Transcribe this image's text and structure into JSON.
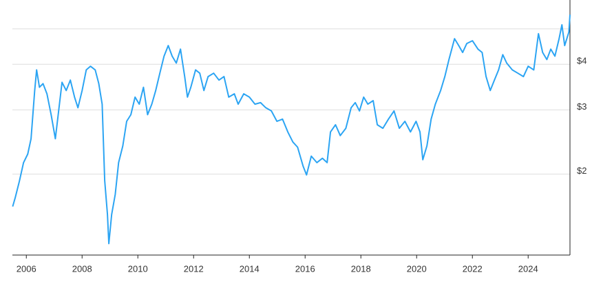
{
  "chart_data": {
    "type": "line",
    "color": "#2ba4f3",
    "yscale": "log",
    "grid": true,
    "xlim": [
      2005.5,
      2025.5
    ],
    "xticks": [
      2006,
      2008,
      2010,
      2012,
      2014,
      2016,
      2018,
      2020,
      2022,
      2024
    ],
    "ylim": [
      1.2,
      6
    ],
    "yticks": [
      {
        "value": 2,
        "label": "$2"
      },
      {
        "value": 3,
        "label": "$3"
      },
      {
        "value": 4,
        "label": "$4"
      },
      {
        "value": 5,
        "label": null
      }
    ],
    "x": [
      2005.51,
      2005.6,
      2005.75,
      2005.9,
      2006.05,
      2006.17,
      2006.3,
      2006.37,
      2006.47,
      2006.6,
      2006.74,
      2006.89,
      2007.04,
      2007.16,
      2007.28,
      2007.43,
      2007.58,
      2007.73,
      2007.85,
      2008.0,
      2008.15,
      2008.3,
      2008.47,
      2008.6,
      2008.72,
      2008.81,
      2008.91,
      2008.96,
      2009.06,
      2009.19,
      2009.31,
      2009.46,
      2009.6,
      2009.75,
      2009.9,
      2010.05,
      2010.2,
      2010.35,
      2010.5,
      2010.64,
      2010.79,
      2010.94,
      2011.09,
      2011.23,
      2011.38,
      2011.53,
      2011.68,
      2011.78,
      2011.9,
      2012.07,
      2012.22,
      2012.37,
      2012.52,
      2012.72,
      2012.91,
      2013.09,
      2013.26,
      2013.46,
      2013.6,
      2013.8,
      2014.0,
      2014.2,
      2014.4,
      2014.59,
      2014.79,
      2014.99,
      2015.19,
      2015.38,
      2015.56,
      2015.73,
      2015.93,
      2016.05,
      2016.22,
      2016.42,
      2016.62,
      2016.79,
      2016.91,
      2017.09,
      2017.26,
      2017.46,
      2017.65,
      2017.8,
      2017.95,
      2018.1,
      2018.25,
      2018.44,
      2018.59,
      2018.79,
      2018.99,
      2019.19,
      2019.38,
      2019.58,
      2019.78,
      2019.98,
      2020.12,
      2020.22,
      2020.37,
      2020.52,
      2020.67,
      2020.86,
      2021.01,
      2021.16,
      2021.36,
      2021.51,
      2021.65,
      2021.8,
      2022.0,
      2022.2,
      2022.35,
      2022.49,
      2022.64,
      2022.79,
      2022.94,
      2023.09,
      2023.23,
      2023.43,
      2023.63,
      2023.83,
      2024.0,
      2024.2,
      2024.37,
      2024.52,
      2024.67,
      2024.81,
      2024.96,
      2025.11,
      2025.21,
      2025.31,
      2025.46,
      2025.5
    ],
    "series": [
      {
        "name": null,
        "color": "#2ba4f3",
        "values": [
          1.63,
          1.72,
          1.91,
          2.15,
          2.27,
          2.5,
          3.39,
          3.86,
          3.46,
          3.54,
          3.32,
          2.91,
          2.5,
          2.98,
          3.57,
          3.39,
          3.62,
          3.25,
          3.04,
          3.39,
          3.86,
          3.95,
          3.86,
          3.54,
          3.11,
          1.92,
          1.55,
          1.29,
          1.55,
          1.76,
          2.15,
          2.39,
          2.79,
          2.91,
          3.25,
          3.11,
          3.46,
          2.91,
          3.11,
          3.39,
          3.78,
          4.21,
          4.5,
          4.21,
          4.03,
          4.4,
          3.7,
          3.25,
          3.46,
          3.86,
          3.78,
          3.39,
          3.7,
          3.78,
          3.62,
          3.7,
          3.25,
          3.32,
          3.11,
          3.32,
          3.25,
          3.11,
          3.14,
          3.04,
          2.98,
          2.79,
          2.83,
          2.61,
          2.45,
          2.37,
          2.1,
          1.99,
          2.24,
          2.15,
          2.21,
          2.15,
          2.61,
          2.73,
          2.55,
          2.67,
          3.04,
          3.14,
          2.98,
          3.25,
          3.11,
          3.18,
          2.73,
          2.67,
          2.83,
          2.98,
          2.67,
          2.79,
          2.61,
          2.79,
          2.61,
          2.19,
          2.39,
          2.83,
          3.11,
          3.39,
          3.7,
          4.12,
          4.7,
          4.5,
          4.31,
          4.56,
          4.64,
          4.4,
          4.31,
          3.7,
          3.39,
          3.62,
          3.86,
          4.25,
          4.03,
          3.86,
          3.78,
          3.7,
          3.95,
          3.86,
          4.85,
          4.31,
          4.12,
          4.4,
          4.21,
          4.7,
          5.13,
          4.5,
          4.9,
          5.47
        ]
      }
    ]
  }
}
